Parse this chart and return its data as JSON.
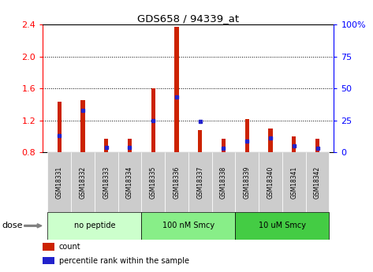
{
  "title": "GDS658 / 94339_at",
  "categories": [
    "GSM18331",
    "GSM18332",
    "GSM18333",
    "GSM18334",
    "GSM18335",
    "GSM18336",
    "GSM18337",
    "GSM18338",
    "GSM18339",
    "GSM18340",
    "GSM18341",
    "GSM18342"
  ],
  "count_values": [
    1.43,
    1.45,
    0.97,
    0.97,
    1.6,
    2.37,
    1.08,
    0.97,
    1.22,
    1.1,
    1.0,
    0.97
  ],
  "percentile_values": [
    13,
    33,
    4,
    4,
    25,
    43,
    24,
    3,
    9,
    11,
    5,
    3
  ],
  "baseline": 0.8,
  "ylim": [
    0.8,
    2.4
  ],
  "y2lim": [
    0,
    100
  ],
  "yticks": [
    0.8,
    1.2,
    1.6,
    2.0,
    2.4
  ],
  "y2ticks": [
    0,
    25,
    50,
    75,
    100
  ],
  "y2ticklabels": [
    "0",
    "25",
    "50",
    "75",
    "100%"
  ],
  "bar_color": "#cc2200",
  "dot_color": "#2222cc",
  "groups": [
    {
      "label": "no peptide",
      "start": 0,
      "end": 3,
      "color": "#ccffcc"
    },
    {
      "label": "100 nM Smcy",
      "start": 4,
      "end": 7,
      "color": "#88ee88"
    },
    {
      "label": "10 uM Smcy",
      "start": 8,
      "end": 11,
      "color": "#44cc44"
    }
  ],
  "dose_label": "dose",
  "legend_items": [
    {
      "label": "count",
      "color": "#cc2200"
    },
    {
      "label": "percentile rank within the sample",
      "color": "#2222cc"
    }
  ],
  "bg_color": "#ffffff",
  "label_box_color": "#cccccc",
  "bar_width": 0.18,
  "figsize": [
    4.73,
    3.45
  ],
  "dpi": 100
}
